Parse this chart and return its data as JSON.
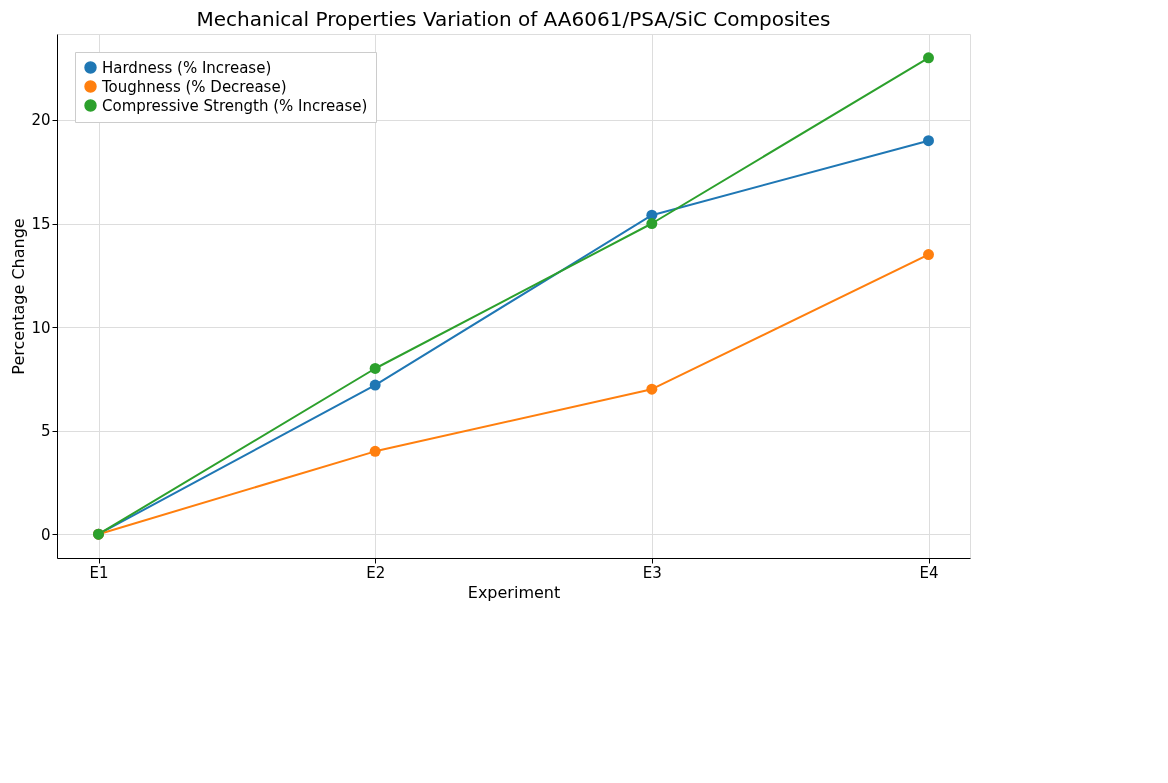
{
  "chart_data": {
    "type": "line",
    "title": "Mechanical Properties Variation of AA6061/PSA/SiC Composites",
    "xlabel": "Experiment",
    "ylabel": "Percentage Change",
    "categories": [
      "E1",
      "E2",
      "E3",
      "E4"
    ],
    "series": [
      {
        "name": "Hardness (% Increase)",
        "color": "#1f77b4",
        "values": [
          0,
          7.2,
          15.4,
          19
        ]
      },
      {
        "name": "Toughness (% Decrease)",
        "color": "#ff7f0e",
        "values": [
          0,
          4,
          7,
          13.5
        ]
      },
      {
        "name": "Compressive Strength (% Increase)",
        "color": "#2ca02c",
        "values": [
          0,
          8,
          15,
          23
        ]
      }
    ],
    "ylim": [
      -1.15,
      24.15
    ],
    "yticks": [
      0,
      5,
      10,
      15,
      20
    ],
    "grid": true,
    "legend": "top left",
    "marker": "circle",
    "line_style": "solid"
  }
}
